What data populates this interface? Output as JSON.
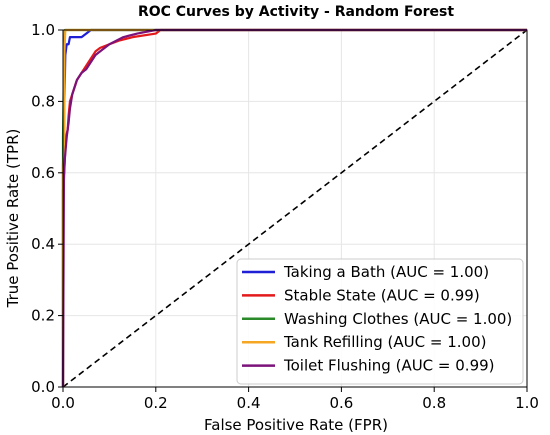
{
  "chart_data": {
    "type": "line",
    "title": "ROC Curves by Activity - Random Forest",
    "xlabel": "False Positive Rate (FPR)",
    "ylabel": "True Positive Rate (TPR)",
    "xlim": [
      0.0,
      1.0
    ],
    "ylim": [
      0.0,
      1.0
    ],
    "x_ticks": [
      "0.0",
      "0.2",
      "0.4",
      "0.6",
      "0.8",
      "1.0"
    ],
    "y_ticks": [
      "0.0",
      "0.2",
      "0.4",
      "0.6",
      "0.8",
      "1.0"
    ],
    "grid": true,
    "legend_position": "lower-right",
    "diagonal_reference": {
      "style": "dashed",
      "color": "#000000",
      "points": [
        [
          0,
          0
        ],
        [
          1,
          1
        ]
      ]
    },
    "series": [
      {
        "name": "Taking a Bath (AUC = 1.00)",
        "color": "#1f1fd6",
        "points": [
          [
            0,
            0
          ],
          [
            0,
            0.62
          ],
          [
            0.003,
            0.8
          ],
          [
            0.005,
            0.93
          ],
          [
            0.008,
            0.96
          ],
          [
            0.012,
            0.96
          ],
          [
            0.015,
            0.98
          ],
          [
            0.02,
            0.98
          ],
          [
            0.04,
            0.98
          ],
          [
            0.05,
            0.99
          ],
          [
            0.06,
            1.0
          ],
          [
            1.0,
            1.0
          ]
        ]
      },
      {
        "name": "Stable State (AUC = 0.99)",
        "color": "#e31a1c",
        "points": [
          [
            0,
            0
          ],
          [
            0,
            0.55
          ],
          [
            0.004,
            0.64
          ],
          [
            0.006,
            0.7
          ],
          [
            0.01,
            0.72
          ],
          [
            0.012,
            0.76
          ],
          [
            0.015,
            0.8
          ],
          [
            0.02,
            0.82
          ],
          [
            0.025,
            0.84
          ],
          [
            0.03,
            0.86
          ],
          [
            0.04,
            0.88
          ],
          [
            0.05,
            0.9
          ],
          [
            0.06,
            0.92
          ],
          [
            0.07,
            0.94
          ],
          [
            0.08,
            0.95
          ],
          [
            0.1,
            0.96
          ],
          [
            0.12,
            0.97
          ],
          [
            0.15,
            0.98
          ],
          [
            0.2,
            0.99
          ],
          [
            0.21,
            1.0
          ],
          [
            1.0,
            1.0
          ]
        ]
      },
      {
        "name": "Washing Clothes (AUC = 1.00)",
        "color": "#2a8a2a",
        "points": [
          [
            0,
            0
          ],
          [
            0,
            0.7
          ],
          [
            0.002,
            0.9
          ],
          [
            0.004,
            1.0
          ],
          [
            1.0,
            1.0
          ]
        ]
      },
      {
        "name": "Tank Refilling (AUC = 1.00)",
        "color": "#f5a623",
        "points": [
          [
            0,
            0
          ],
          [
            0,
            0.6
          ],
          [
            0.003,
            0.72
          ],
          [
            0.003,
            0.94
          ],
          [
            0.005,
            1.0
          ],
          [
            1.0,
            1.0
          ]
        ]
      },
      {
        "name": "Toilet Flushing (AUC = 0.99)",
        "color": "#7b137b",
        "points": [
          [
            0,
            0
          ],
          [
            0.002,
            0.58
          ],
          [
            0.004,
            0.64
          ],
          [
            0.008,
            0.7
          ],
          [
            0.012,
            0.74
          ],
          [
            0.015,
            0.78
          ],
          [
            0.02,
            0.82
          ],
          [
            0.03,
            0.86
          ],
          [
            0.04,
            0.88
          ],
          [
            0.05,
            0.89
          ],
          [
            0.06,
            0.91
          ],
          [
            0.07,
            0.93
          ],
          [
            0.08,
            0.94
          ],
          [
            0.1,
            0.96
          ],
          [
            0.13,
            0.98
          ],
          [
            0.16,
            0.99
          ],
          [
            0.2,
            1.0
          ],
          [
            1.0,
            1.0
          ]
        ]
      }
    ]
  }
}
